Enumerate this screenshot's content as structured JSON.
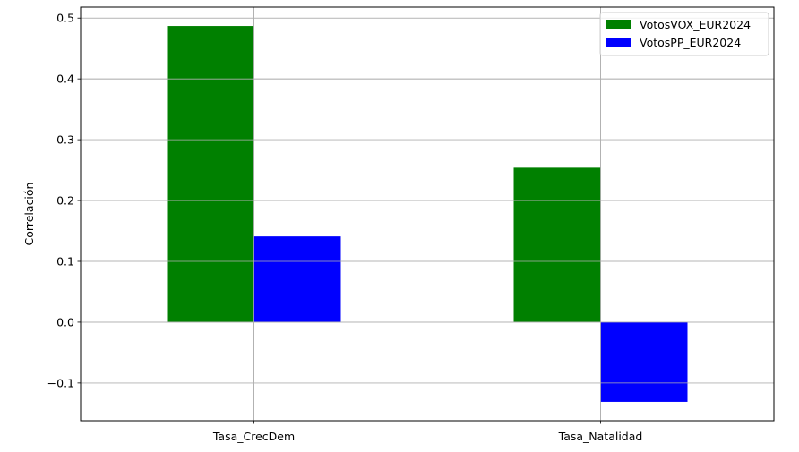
{
  "chart_data": {
    "type": "bar",
    "title": "",
    "xlabel": "",
    "ylabel": "Correlación",
    "categories": [
      "Tasa_CrecDem",
      "Tasa_Natalidad"
    ],
    "series": [
      {
        "name": "VotosVOX_EUR2024",
        "color": "#008000",
        "values": [
          0.487,
          0.254
        ]
      },
      {
        "name": "VotosPP_EUR2024",
        "color": "#0000ff",
        "values": [
          0.141,
          -0.131
        ]
      }
    ],
    "ylim": [
      -0.162,
      0.518
    ],
    "yticks": [
      -0.1,
      0.0,
      0.1,
      0.2,
      0.3,
      0.4,
      0.5
    ],
    "ytick_labels": [
      "−0.1",
      "0.0",
      "0.1",
      "0.2",
      "0.3",
      "0.4",
      "0.5"
    ],
    "grid": true,
    "legend_position": "top-right"
  }
}
